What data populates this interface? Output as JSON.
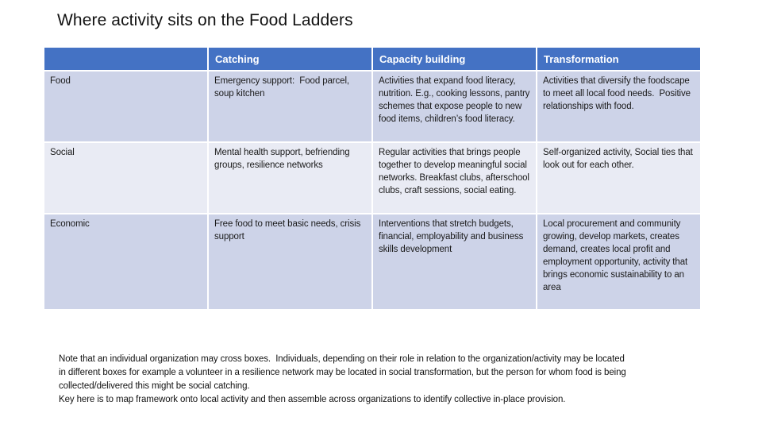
{
  "title": "Where activity sits on the Food Ladders",
  "table": {
    "headers": [
      "",
      "Catching",
      "Capacity building",
      "Transformation"
    ],
    "rows": [
      {
        "label": "Food",
        "cells": [
          "Emergency support:  Food parcel, soup kitchen",
          "Activities that expand food literacy, nutrition. E.g., cooking lessons, pantry schemes that expose people to new food items, children’s food literacy.",
          "Activities that diversify the foodscape to meet all local food needs.  Positive relationships with food."
        ]
      },
      {
        "label": "Social",
        "cells": [
          "Mental health support, befriending groups, resilience networks",
          "Regular activities that brings people together to develop meaningful social networks. Breakfast clubs, afterschool clubs, craft sessions, social eating.",
          "Self-organized activity, Social ties that look out for each other."
        ]
      },
      {
        "label": "Economic",
        "cells": [
          "Free food to meet basic needs, crisis support",
          "Interventions that stretch budgets, financial, employability and business skills development",
          "Local procurement and community growing, develop markets, creates demand, creates local profit and employment opportunity, activity that brings economic sustainability to an area"
        ]
      }
    ]
  },
  "notes": {
    "lines": [
      "Note that an individual organization may cross boxes.  Individuals, depending on their role in relation to the organization/activity may be located",
      "in different boxes for example a volunteer in a resilience network may be located in social transformation, but the person for whom food is being",
      "collected/delivered this might be social catching.",
      "Key here is to map framework onto local activity and then assemble across organizations to identify collective in-place provision."
    ]
  },
  "colors": {
    "header_bg": "#4472C4",
    "header_text": "#FFFFFF",
    "band_a": "#CDD3E8",
    "band_b": "#E9EBF4",
    "body_text": "#1a1a1a"
  }
}
